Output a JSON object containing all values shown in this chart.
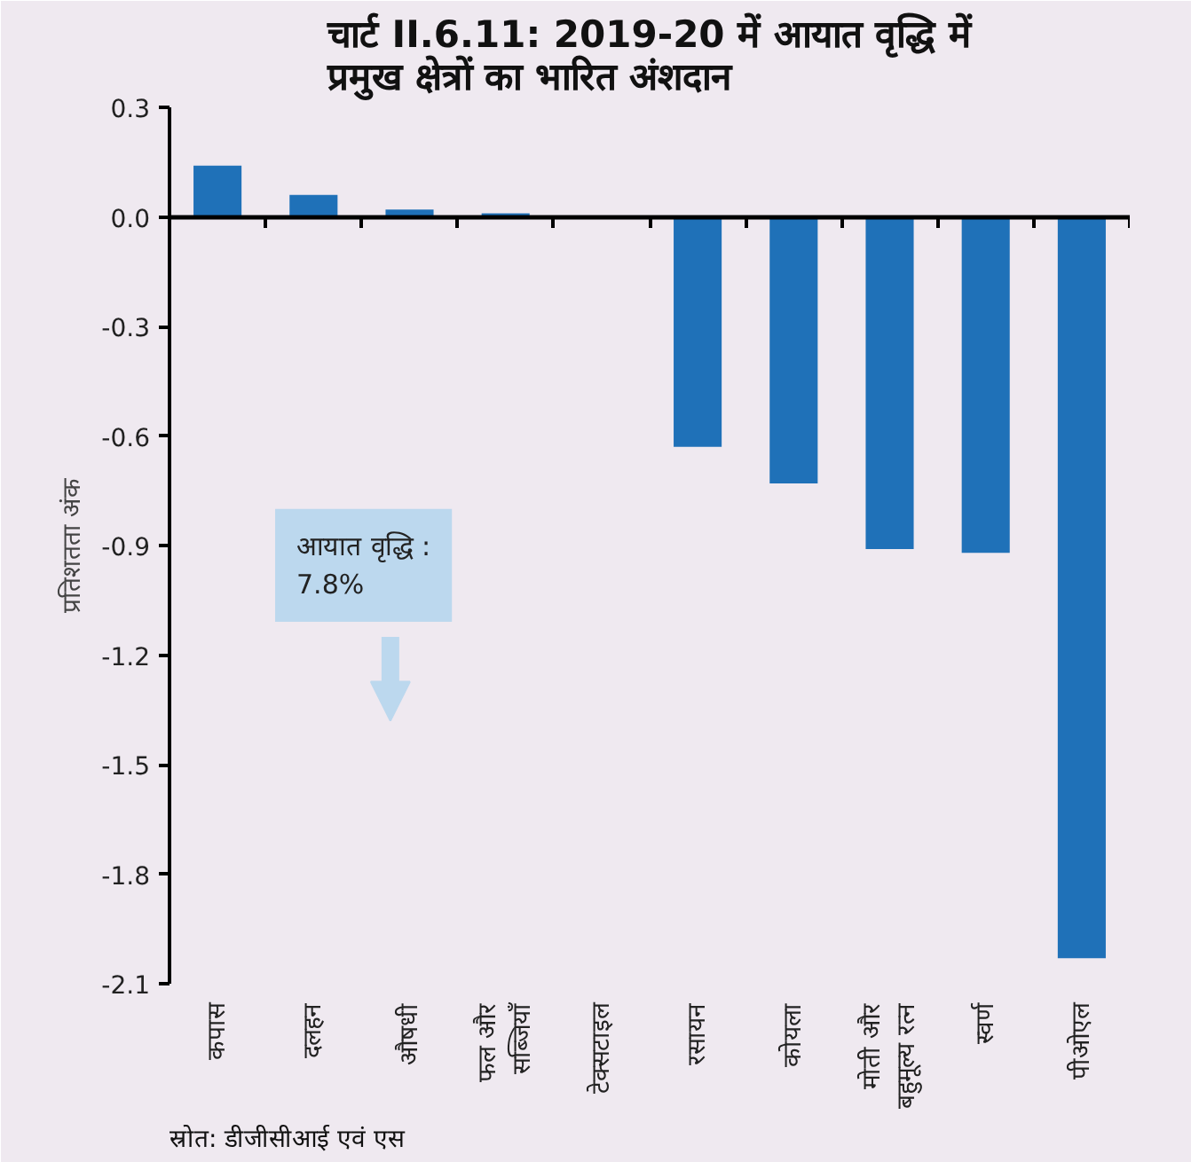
{
  "chart_data": {
    "type": "bar",
    "title": "चार्ट II.6.11: 2019-20 में आयात वृद्धि में प्रमुख क्षेत्रों का भारित अंशदान",
    "ylabel": "प्रतिशतता अंक",
    "categories": [
      "कपास",
      "दलहन",
      "औषधी",
      "फल और सब्जियाँ",
      "टेक्सटाइल",
      "रसायन",
      "कोयला",
      "मोती और बहुमूल्य रत्न",
      "स्वर्ण",
      "पीओएल"
    ],
    "values": [
      0.14,
      0.06,
      0.02,
      0.01,
      0.0,
      -0.63,
      -0.73,
      -0.91,
      -0.92,
      -2.03
    ],
    "color": "#1f71b8",
    "ylim": [
      -2.1,
      0.3
    ],
    "yticks": [
      {
        "value": 0.3,
        "label": "0.3"
      },
      {
        "value": 0.0,
        "label": "0.0"
      },
      {
        "value": -0.3,
        "label": "-0.3"
      },
      {
        "value": -0.6,
        "label": "-0.6"
      },
      {
        "value": -0.9,
        "label": "-0.9"
      },
      {
        "value": -1.2,
        "label": "-1.2"
      },
      {
        "value": -1.5,
        "label": "-1.5"
      },
      {
        "value": -1.8,
        "label": "-1.8"
      },
      {
        "value": -2.1,
        "label": "-2.1"
      }
    ],
    "annotations": [
      "आयात वृद्धि :\n 7.8%",
      "स्रोत: डीजीसीआई एवं एस"
    ]
  }
}
